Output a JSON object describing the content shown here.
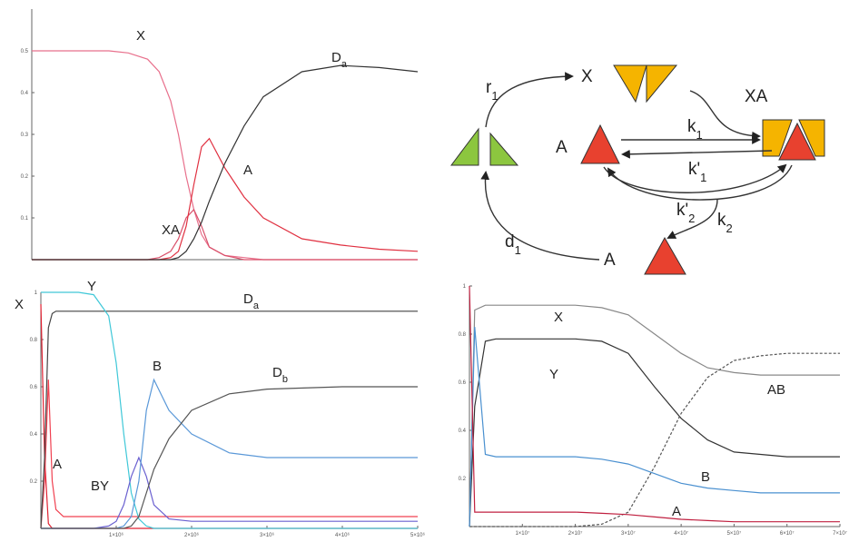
{
  "chart_data": [
    {
      "type": "line",
      "xlim": [
        0,
        100
      ],
      "ylim": [
        0,
        0.6
      ],
      "yticks": [
        0.1,
        0.2,
        0.3,
        0.4,
        0.5
      ],
      "x": [
        0,
        10,
        20,
        25,
        30,
        33,
        36,
        38,
        40,
        42,
        44,
        46,
        50,
        55,
        60,
        70,
        80,
        90,
        100
      ],
      "series": [
        {
          "name": "X",
          "color": "#e8708c",
          "values": [
            0.5,
            0.5,
            0.5,
            0.495,
            0.48,
            0.45,
            0.38,
            0.3,
            0.2,
            0.12,
            0.06,
            0.03,
            0.01,
            0.005,
            0,
            0,
            0,
            0,
            0
          ]
        },
        {
          "name": "XA",
          "color": "#d9506a",
          "values": [
            0,
            0,
            0,
            0,
            0,
            0.005,
            0.02,
            0.05,
            0.1,
            0.12,
            0.08,
            0.03,
            0.01,
            0,
            0,
            0,
            0,
            0,
            0
          ]
        },
        {
          "name": "A",
          "color": "#e03040",
          "values": [
            0,
            0,
            0,
            0,
            0,
            0,
            0.005,
            0.02,
            0.08,
            0.18,
            0.27,
            0.29,
            0.22,
            0.15,
            0.1,
            0.05,
            0.035,
            0.025,
            0.02
          ]
        },
        {
          "name": "Da",
          "color": "#333333",
          "values": [
            0,
            0,
            0,
            0,
            0,
            0,
            0,
            0.005,
            0.02,
            0.05,
            0.09,
            0.14,
            0.23,
            0.32,
            0.39,
            0.45,
            0.465,
            0.46,
            0.45
          ]
        }
      ]
    },
    {
      "type": "line",
      "xlim": [
        0,
        5000000
      ],
      "ylim": [
        0,
        1
      ],
      "yticks": [
        0.2,
        0.4,
        0.6,
        0.8,
        1
      ],
      "xticks": [
        {
          "value": 1000000,
          "label": "1×10⁶"
        },
        {
          "value": 2000000,
          "label": "2×10⁶"
        },
        {
          "value": 3000000,
          "label": "3×10⁶"
        },
        {
          "value": 4000000,
          "label": "4×10⁶"
        },
        {
          "value": 5000000,
          "label": "5×10⁶"
        }
      ],
      "x": [
        0,
        50000,
        100000,
        150000,
        200000,
        300000,
        500000,
        700000,
        900000,
        1000000,
        1100000,
        1200000,
        1300000,
        1400000,
        1500000,
        1700000,
        2000000,
        2500000,
        3000000,
        4000000,
        5000000
      ],
      "series": [
        {
          "name": "X",
          "color": "#e02030",
          "values": [
            0.95,
            0.3,
            0.02,
            0,
            0,
            0,
            0,
            0,
            0,
            0,
            0,
            0,
            0,
            0,
            0,
            0,
            0,
            0,
            0,
            0,
            0
          ]
        },
        {
          "name": "A",
          "color": "#f04050",
          "values": [
            0,
            0.2,
            0.63,
            0.2,
            0.08,
            0.05,
            0.05,
            0.05,
            0.05,
            0.05,
            0.05,
            0.05,
            0.05,
            0.05,
            0.05,
            0.05,
            0.05,
            0.05,
            0.05,
            0.05,
            0.05
          ]
        },
        {
          "name": "Da",
          "color": "#444444",
          "values": [
            0,
            0.3,
            0.85,
            0.91,
            0.92,
            0.92,
            0.92,
            0.92,
            0.92,
            0.92,
            0.92,
            0.92,
            0.92,
            0.92,
            0.92,
            0.92,
            0.92,
            0.92,
            0.92,
            0.92,
            0.92
          ]
        },
        {
          "name": "Y",
          "color": "#40c8d8",
          "values": [
            1,
            1,
            1,
            1,
            1,
            1,
            1,
            0.99,
            0.9,
            0.7,
            0.4,
            0.15,
            0.04,
            0.01,
            0,
            0,
            0,
            0,
            0,
            0,
            0
          ]
        },
        {
          "name": "BY",
          "color": "#6a60d0",
          "values": [
            0,
            0,
            0,
            0,
            0,
            0,
            0,
            0,
            0.01,
            0.03,
            0.1,
            0.22,
            0.3,
            0.22,
            0.1,
            0.04,
            0.03,
            0.03,
            0.03,
            0.03,
            0.03
          ]
        },
        {
          "name": "B",
          "color": "#5a98d8",
          "values": [
            0,
            0,
            0,
            0,
            0,
            0,
            0,
            0,
            0,
            0,
            0.01,
            0.05,
            0.2,
            0.5,
            0.63,
            0.5,
            0.4,
            0.32,
            0.3,
            0.3,
            0.3
          ]
        },
        {
          "name": "Db",
          "color": "#555555",
          "values": [
            0,
            0,
            0,
            0,
            0,
            0,
            0,
            0,
            0,
            0,
            0,
            0.01,
            0.05,
            0.15,
            0.25,
            0.38,
            0.5,
            0.57,
            0.59,
            0.6,
            0.6
          ]
        }
      ]
    },
    {
      "type": "line",
      "xlim": [
        0,
        70000000
      ],
      "ylim": [
        0,
        1
      ],
      "yticks": [
        0.2,
        0.4,
        0.6,
        0.8,
        1
      ],
      "xticks": [
        {
          "value": 10000000,
          "label": "1×10⁷"
        },
        {
          "value": 20000000,
          "label": "2×10⁷"
        },
        {
          "value": 30000000,
          "label": "3×10⁷"
        },
        {
          "value": 40000000,
          "label": "4×10⁷"
        },
        {
          "value": 50000000,
          "label": "5×10⁷"
        },
        {
          "value": 60000000,
          "label": "6×10⁷"
        },
        {
          "value": 70000000,
          "label": "7×10⁷"
        }
      ],
      "x": [
        0,
        1000000,
        3000000,
        5000000,
        10000000,
        20000000,
        25000000,
        30000000,
        35000000,
        40000000,
        45000000,
        50000000,
        55000000,
        60000000,
        70000000
      ],
      "series": [
        {
          "name": "X",
          "color": "#888888",
          "values": [
            0,
            0.9,
            0.92,
            0.92,
            0.92,
            0.92,
            0.91,
            0.88,
            0.8,
            0.72,
            0.66,
            0.64,
            0.63,
            0.63,
            0.63
          ]
        },
        {
          "name": "Y",
          "color": "#333333",
          "values": [
            0,
            0.5,
            0.77,
            0.78,
            0.78,
            0.78,
            0.77,
            0.72,
            0.58,
            0.45,
            0.36,
            0.31,
            0.3,
            0.29,
            0.29
          ]
        },
        {
          "name": "AB",
          "color": "#555555",
          "dashed": true,
          "values": [
            0,
            0,
            0,
            0,
            0,
            0,
            0.01,
            0.06,
            0.25,
            0.47,
            0.62,
            0.69,
            0.71,
            0.72,
            0.72
          ]
        },
        {
          "name": "B",
          "color": "#4a90d0",
          "values": [
            0,
            0.83,
            0.3,
            0.29,
            0.29,
            0.29,
            0.28,
            0.26,
            0.22,
            0.18,
            0.16,
            0.15,
            0.14,
            0.14,
            0.14
          ]
        },
        {
          "name": "A",
          "color": "#c02040",
          "values": [
            1,
            0.06,
            0.06,
            0.06,
            0.06,
            0.06,
            0.055,
            0.05,
            0.04,
            0.03,
            0.025,
            0.02,
            0.02,
            0.02,
            0.02
          ]
        }
      ]
    }
  ],
  "diagram": {
    "labels": [
      {
        "main": "r",
        "sub": "1"
      },
      {
        "main": "X"
      },
      {
        "main": "XA"
      },
      {
        "main": "A"
      },
      {
        "main": "k",
        "sub": "1"
      },
      {
        "main": "k'",
        "sub": "1"
      },
      {
        "main": "k'",
        "sub": "2"
      },
      {
        "main": "k",
        "sub": "2"
      },
      {
        "main": "d",
        "sub": "1"
      },
      {
        "main": "A"
      }
    ]
  }
}
